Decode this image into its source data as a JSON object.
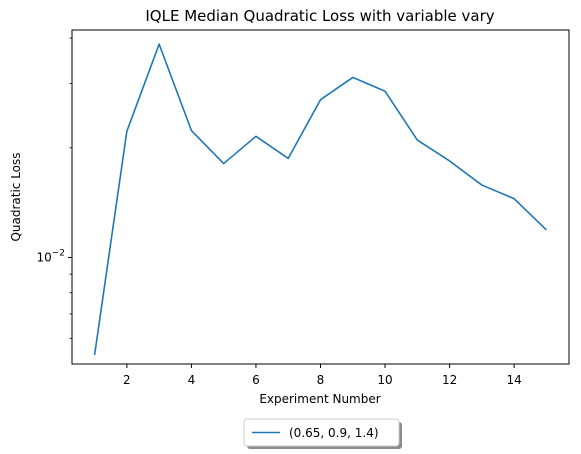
{
  "chart_data": {
    "type": "line",
    "title": "IQLE Median Quadratic Loss with variable vary",
    "xlabel": "Experiment Number",
    "ylabel": "Quadratic Loss",
    "yscale": "log",
    "xlim": [
      0.3,
      15.7
    ],
    "ylim": [
      0.0051,
      0.0421
    ],
    "grid": false,
    "legend_position": "below-center",
    "x_ticks": [
      2,
      4,
      6,
      8,
      10,
      12,
      14
    ],
    "y_major_ticks": [
      {
        "value": 0.01,
        "base": "10",
        "exponent": "−2"
      }
    ],
    "y_minor_ticks": [
      0.006,
      0.007,
      0.008,
      0.009,
      0.02,
      0.03,
      0.04
    ],
    "series": [
      {
        "name": "(0.65, 0.9, 1.4)",
        "color": "#1f77b4",
        "x": [
          1,
          2,
          3,
          4,
          5,
          6,
          7,
          8,
          9,
          10,
          11,
          12,
          13,
          14,
          15
        ],
        "y": [
          0.0054,
          0.0222,
          0.0385,
          0.0223,
          0.0181,
          0.0215,
          0.0187,
          0.0271,
          0.0312,
          0.0286,
          0.021,
          0.0184,
          0.0158,
          0.0145,
          0.0119
        ]
      }
    ]
  }
}
